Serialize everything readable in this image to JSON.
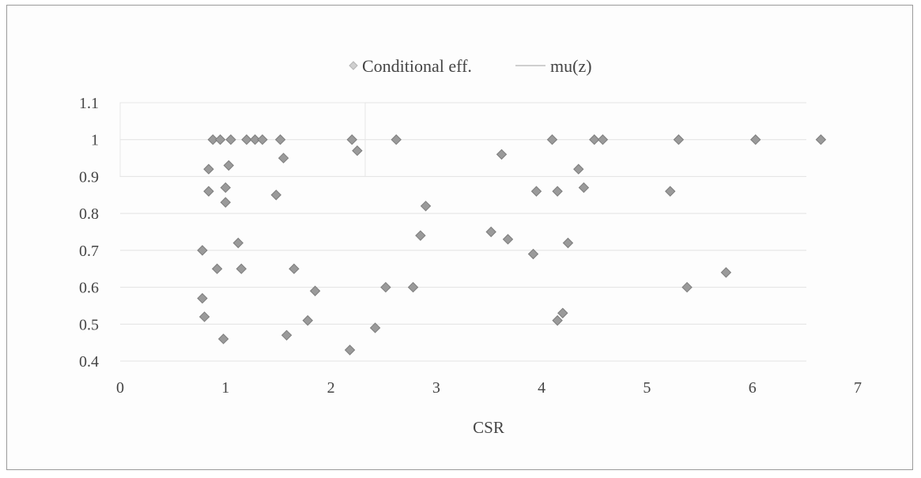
{
  "chart_data": {
    "type": "scatter",
    "xlabel": "CSR",
    "ylabel": "",
    "xlim": [
      0,
      7
    ],
    "ylim": [
      0.4,
      1.1
    ],
    "x_ticks": [
      "0",
      "1",
      "2",
      "3",
      "4",
      "5",
      "6",
      "7"
    ],
    "y_ticks": [
      "0.4",
      "0.5",
      "0.6",
      "0.7",
      "0.8",
      "0.9",
      "1",
      "1.1"
    ],
    "grid": "horizontal",
    "legend_position": "top",
    "series": [
      {
        "name": "Conditional eff.",
        "color": "#9a9a9a",
        "marker": "diamond",
        "points": [
          [
            0.78,
            0.57
          ],
          [
            0.78,
            0.7
          ],
          [
            0.8,
            0.52
          ],
          [
            0.84,
            0.92
          ],
          [
            0.84,
            0.86
          ],
          [
            0.88,
            1.0
          ],
          [
            0.92,
            0.65
          ],
          [
            0.95,
            1.0
          ],
          [
            0.98,
            0.46
          ],
          [
            1.0,
            0.87
          ],
          [
            1.0,
            0.83
          ],
          [
            1.03,
            0.93
          ],
          [
            1.05,
            1.0
          ],
          [
            1.12,
            0.72
          ],
          [
            1.15,
            0.65
          ],
          [
            1.2,
            1.0
          ],
          [
            1.28,
            1.0
          ],
          [
            1.35,
            1.0
          ],
          [
            1.48,
            0.85
          ],
          [
            1.52,
            1.0
          ],
          [
            1.55,
            0.95
          ],
          [
            1.58,
            0.47
          ],
          [
            1.65,
            0.65
          ],
          [
            1.78,
            0.51
          ],
          [
            1.85,
            0.59
          ],
          [
            2.18,
            0.43
          ],
          [
            2.2,
            1.0
          ],
          [
            2.25,
            0.97
          ],
          [
            2.42,
            0.49
          ],
          [
            2.52,
            0.6
          ],
          [
            2.62,
            1.0
          ],
          [
            2.78,
            0.6
          ],
          [
            2.85,
            0.74
          ],
          [
            2.9,
            0.82
          ],
          [
            3.52,
            0.75
          ],
          [
            3.62,
            0.96
          ],
          [
            3.68,
            0.73
          ],
          [
            3.92,
            0.69
          ],
          [
            3.95,
            0.86
          ],
          [
            4.1,
            1.0
          ],
          [
            4.15,
            0.86
          ],
          [
            4.15,
            0.51
          ],
          [
            4.2,
            0.53
          ],
          [
            4.25,
            0.72
          ],
          [
            4.35,
            0.92
          ],
          [
            4.4,
            0.87
          ],
          [
            4.5,
            1.0
          ],
          [
            4.58,
            1.0
          ],
          [
            5.22,
            0.86
          ],
          [
            5.3,
            1.0
          ],
          [
            5.38,
            0.6
          ],
          [
            5.75,
            0.64
          ],
          [
            6.03,
            1.0
          ],
          [
            6.65,
            1.0
          ]
        ]
      },
      {
        "name": "mu(z)",
        "color": "#cfcfcf",
        "marker": "line",
        "points": []
      }
    ]
  }
}
